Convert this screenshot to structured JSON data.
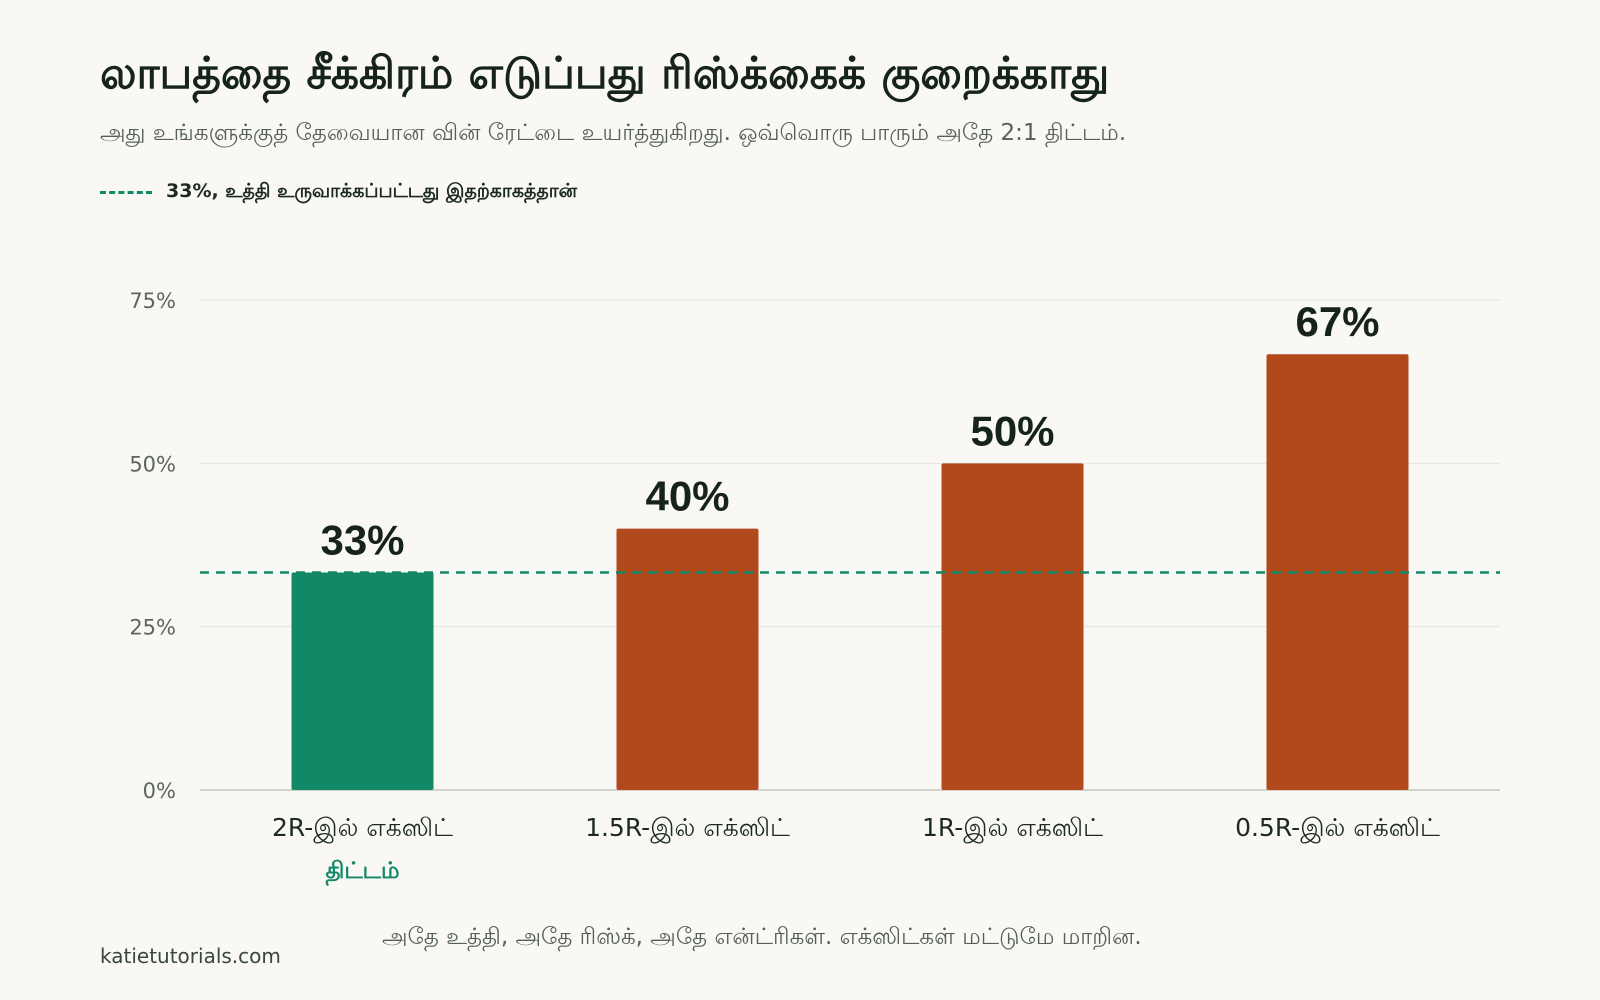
{
  "title": "லாபத்தை சீக்கிரம் எடுப்பது ரிஸ்க்கைக் குறைக்காது",
  "subtitle": "அது உங்களுக்குத் தேவையான வின் ரேட்டை உயர்த்துகிறது. ஒவ்வொரு பாரும் அதே 2:1 திட்டம்.",
  "legend": {
    "label": "33%, உத்தி உருவாக்கப்பட்டது இதற்காகத்தான்"
  },
  "caption": "அதே உத்தி, அதே ரிஸ்க், அதே என்ட்ரிகள். எக்ஸிட்கள் மட்டுமே மாறின.",
  "source": "katietutorials.com",
  "colors": {
    "plan": "#128867",
    "other": "#b2491c",
    "reference": "#128867"
  },
  "chart_data": {
    "type": "bar",
    "categories": [
      "2R-இல் எக்ஸிட்",
      "1.5R-இல் எக்ஸிட்",
      "1R-இல் எக்ஸிட்",
      "0.5R-இல் எக்ஸிட்"
    ],
    "values": [
      33.3,
      40,
      50,
      66.7
    ],
    "value_labels": [
      "33%",
      "40%",
      "50%",
      "67%"
    ],
    "category_sublabels": [
      "திட்டம்",
      "",
      "",
      ""
    ],
    "highlight_index": 0,
    "reference_line": {
      "value": 33.3
    },
    "ylim": [
      0,
      75
    ],
    "yticks": [
      0,
      25,
      50,
      75
    ],
    "ytick_labels": [
      "0%",
      "25%",
      "50%",
      "75%"
    ],
    "grid": true
  }
}
